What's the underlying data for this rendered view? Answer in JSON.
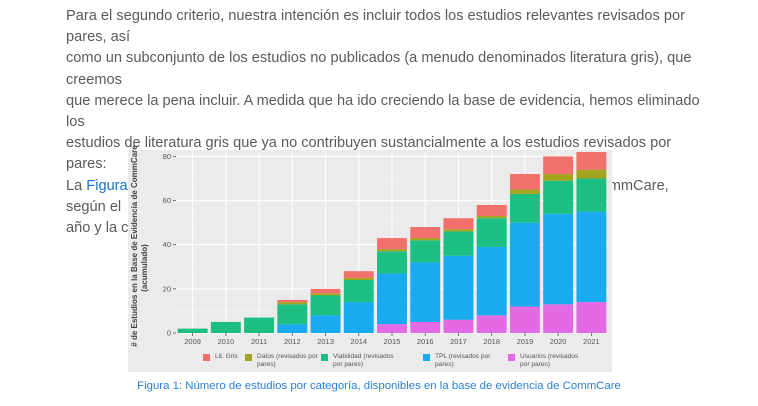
{
  "text": {
    "line1": "Para el segundo criterio, nuestra intención es incluir todos los estudios relevantes revisados por pares, así",
    "line2": "como un subconjunto de los estudios no publicados (a menudo denominados literatura gris), que creemos",
    "line3": "que merece la pena incluir. A medida que ha ido creciendo la base de evidencia, hemos eliminado los",
    "line4": "estudios de literatura gris que ya no contribuyen sustancialmente a los estudios revisados por pares:",
    "line5_before": "La ",
    "line5_link": "Figura 1",
    "line5_after": " muestra el número de estudios incluidos en la Base de Evidencia de CommCare, según el",
    "line6": "año y la categoría:"
  },
  "caption": "Figura 1: Número de estudios por categoría, disponibles en la base de evidencia de CommCare",
  "chart_data": {
    "type": "bar",
    "stacked": true,
    "ylabel": "# de Estudios en la Base de Evidencia de CommCare (acumulado)",
    "ylabel_line1": "# de Estudios en la Base de Evidencia de CommCare",
    "ylabel_line2": "(acumulado)",
    "xlabel": "",
    "ylim": [
      0,
      82
    ],
    "yticks": [
      0,
      20,
      40,
      60,
      80
    ],
    "grid": true,
    "legend_position": "bottom",
    "categories": [
      "2009",
      "2010",
      "2011",
      "2012",
      "2013",
      "2014",
      "2015",
      "2016",
      "2017",
      "2018",
      "2019",
      "2020",
      "2021"
    ],
    "series": [
      {
        "name": "Usuarios (revisados por pares)",
        "color": "#e46ae4",
        "values": [
          0,
          0,
          0,
          0,
          0,
          0,
          4,
          5,
          6,
          8,
          12,
          13,
          14
        ]
      },
      {
        "name": "TPL (revisados por pares)",
        "color": "#19aaf0",
        "values": [
          0,
          0,
          0,
          4,
          8,
          14,
          23,
          27,
          29,
          31,
          38,
          41,
          41
        ]
      },
      {
        "name": "Viabilidad (revisados por pares)",
        "color": "#1dbe82",
        "values": [
          2,
          5,
          7,
          9,
          9,
          10,
          10,
          10,
          11,
          13,
          13,
          15,
          15
        ]
      },
      {
        "name": "Datos (revisados por pares)",
        "color": "#a3a521",
        "values": [
          0,
          0,
          0,
          1,
          1,
          1,
          1,
          1,
          1,
          1,
          2,
          3,
          4
        ]
      },
      {
        "name": "Lit. Gris",
        "color": "#f2706b",
        "values": [
          0,
          0,
          0,
          1,
          2,
          3,
          5,
          5,
          5,
          5,
          7,
          8,
          8
        ]
      }
    ],
    "legend_order": [
      "Lit. Gris",
      "Datos (revisados por pares)",
      "Viabilidad (revisados por pares)",
      "TPL (revisados por pares)",
      "Usuarios (revisados por pares)"
    ]
  }
}
